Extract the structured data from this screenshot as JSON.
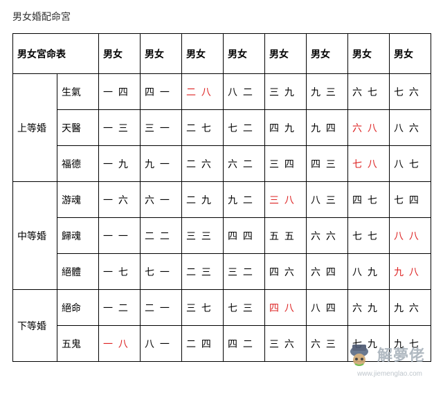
{
  "title": "男女婚配命宮",
  "table": {
    "head": {
      "label": "男女宮命表",
      "cols": [
        "男女",
        "男女",
        "男女",
        "男女",
        "男女",
        "男女",
        "男女",
        "男女"
      ]
    },
    "highlight_color": "#d22",
    "groups": [
      {
        "category": "上等婚",
        "rows": [
          {
            "sub": "生氣",
            "cells": [
              "一 四",
              "四 一",
              "二 八",
              "八 二",
              "三 九",
              "九 三",
              "六 七",
              "七 六"
            ],
            "highlight": [
              2
            ]
          },
          {
            "sub": "天醫",
            "cells": [
              "一 三",
              "三 一",
              "二 七",
              "七 二",
              "四 九",
              "九 四",
              "六 八",
              "八 六"
            ],
            "highlight": [
              6
            ]
          },
          {
            "sub": "福德",
            "cells": [
              "一 九",
              "九 一",
              "二 六",
              "六 二",
              "三 四",
              "四 三",
              "七 八",
              "八 七"
            ],
            "highlight": [
              6
            ]
          }
        ]
      },
      {
        "category": "中等婚",
        "rows": [
          {
            "sub": "游魂",
            "cells": [
              "一 六",
              "六 一",
              "二 九",
              "九 二",
              "三 八",
              "八 三",
              "四 七",
              "七 四"
            ],
            "highlight": [
              4
            ]
          },
          {
            "sub": "歸魂",
            "cells": [
              "一 一",
              "二 二",
              "三 三",
              "四 四",
              "五 五",
              "六 六",
              "七 七",
              "八 八"
            ],
            "highlight": [
              7
            ]
          },
          {
            "sub": "絕體",
            "cells": [
              "一 七",
              "七 一",
              "二 三",
              "三 二",
              "四 六",
              "六 四",
              "八 九",
              "九 八"
            ],
            "highlight": [
              7
            ]
          }
        ]
      },
      {
        "category": "下等婚",
        "rows": [
          {
            "sub": "絕命",
            "cells": [
              "一 二",
              "二 一",
              "三 七",
              "七 三",
              "四 八",
              "八 四",
              "六 九",
              "九 六"
            ],
            "highlight": [
              4
            ]
          },
          {
            "sub": "五鬼",
            "cells": [
              "一 八",
              "八 一",
              "二 四",
              "四 二",
              "三 六",
              "六 三",
              "七 九",
              "九 七"
            ],
            "highlight": [
              0
            ]
          }
        ]
      }
    ]
  },
  "watermark": {
    "brand": "解夢佬",
    "url": "www.jiemenglao.com"
  }
}
